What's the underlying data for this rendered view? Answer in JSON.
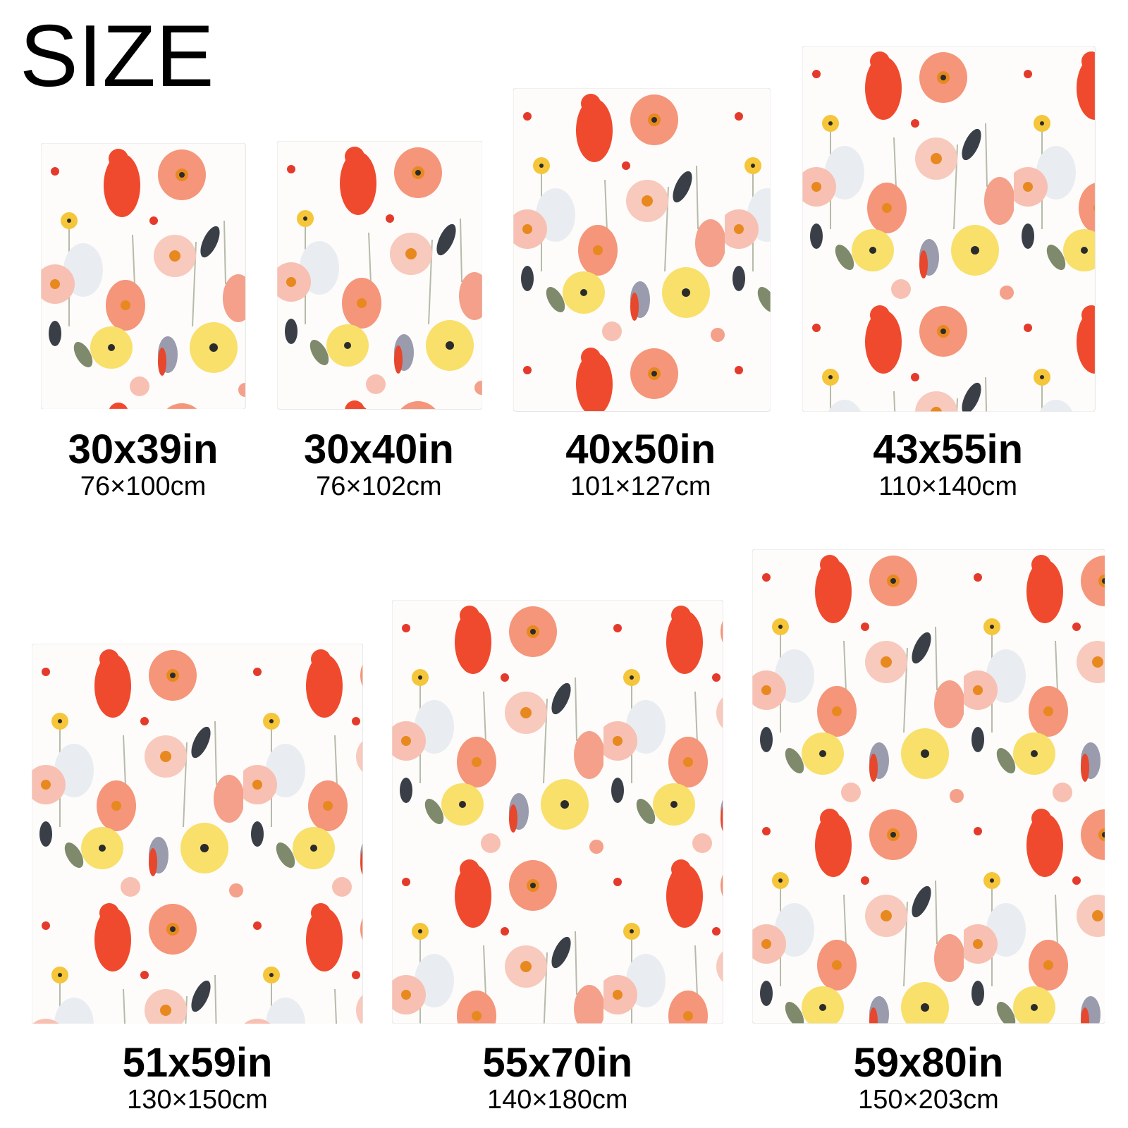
{
  "header": {
    "title": "SIZE"
  },
  "sizes": [
    {
      "inches": "30x39in",
      "cm": "76×100cm"
    },
    {
      "inches": "30x40in",
      "cm": "76×102cm"
    },
    {
      "inches": "40x50in",
      "cm": "101×127cm"
    },
    {
      "inches": "43x55in",
      "cm": "110×140cm"
    },
    {
      "inches": "51x59in",
      "cm": "130×150cm"
    },
    {
      "inches": "55x70in",
      "cm": "140×180cm"
    },
    {
      "inches": "59x80in",
      "cm": "150×203cm"
    }
  ]
}
